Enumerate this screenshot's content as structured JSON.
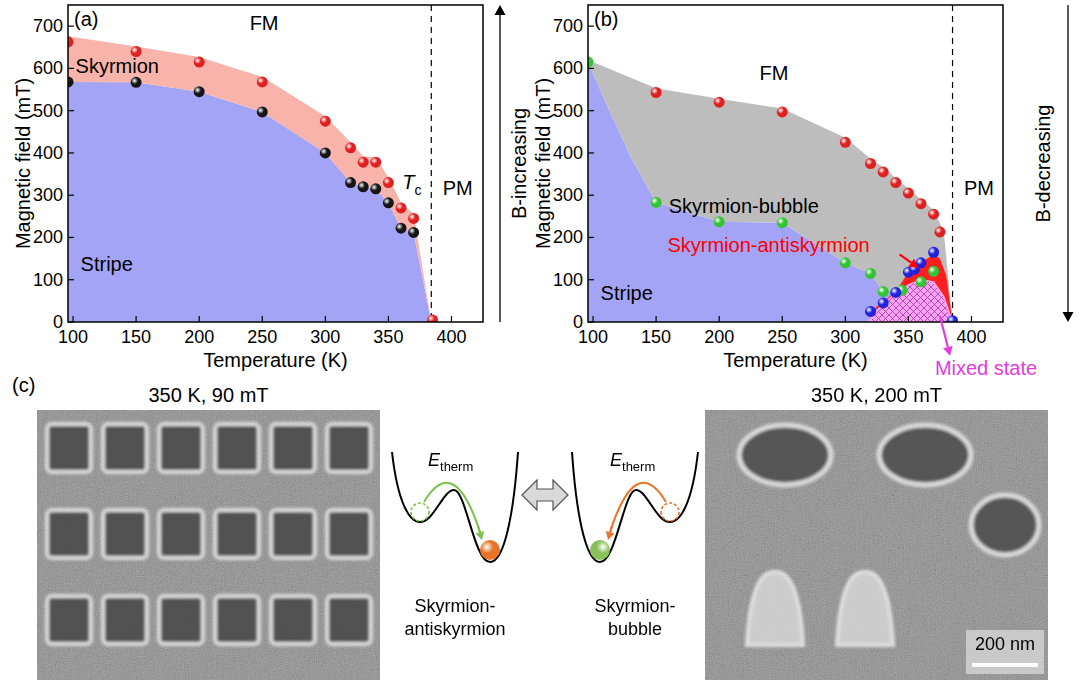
{
  "chart_data": [
    {
      "type": "scatter",
      "panel_label": "(a)",
      "x_label": "Temperature (K)",
      "y_label": "Magnetic field (mT)",
      "side_label": "B-increasing",
      "xlim": [
        96,
        425
      ],
      "ylim": [
        0,
        750
      ],
      "xticks": [
        100,
        150,
        200,
        250,
        300,
        350,
        400
      ],
      "yticks": [
        0,
        100,
        200,
        300,
        400,
        500,
        600,
        700
      ],
      "regions": [
        {
          "color": "#a4a4f6",
          "x": [
            96,
            96,
            150,
            200,
            250,
            300,
            320,
            330,
            340,
            350,
            360,
            370,
            384
          ],
          "y": [
            0,
            568,
            567,
            545,
            497,
            400,
            330,
            320,
            315,
            282,
            222,
            212,
            0
          ]
        },
        {
          "color": "#f8b4ab",
          "x": [
            96,
            150,
            200,
            250,
            300,
            320,
            330,
            340,
            350,
            360,
            370,
            384,
            370,
            360,
            350,
            340,
            330,
            320,
            300,
            250,
            200,
            150,
            96
          ],
          "y": [
            676,
            652,
            627,
            580,
            487,
            425,
            392,
            390,
            342,
            282,
            256,
            0,
            212,
            222,
            282,
            315,
            320,
            330,
            400,
            497,
            545,
            567,
            568
          ]
        }
      ],
      "vlines": [
        {
          "x": 384,
          "line_style": "dashed"
        }
      ],
      "series": [
        {
          "color": "#e02020",
          "marker": "circle",
          "x": [
            96,
            150,
            200,
            250,
            300,
            320,
            330,
            340,
            350,
            360,
            370,
            385
          ],
          "values": [
            663,
            640,
            615,
            568,
            475,
            412,
            378,
            378,
            330,
            270,
            245,
            5
          ]
        },
        {
          "color": "#151515",
          "marker": "circle",
          "x": [
            96,
            150,
            200,
            250,
            300,
            320,
            330,
            340,
            350,
            360,
            370
          ],
          "values": [
            568,
            567,
            545,
            497,
            400,
            330,
            320,
            315,
            282,
            222,
            212
          ]
        }
      ],
      "annotations": [
        {
          "text": "Skyrmion",
          "x": 102,
          "y": 588
        },
        {
          "text": "FM",
          "x": 240,
          "y": 690
        },
        {
          "text": "Stripe",
          "x": 106,
          "y": 120
        },
        {
          "text": "T",
          "sub": "c",
          "x": 361,
          "y": 315
        },
        {
          "text": "PM",
          "x": 393,
          "y": 300
        }
      ]
    },
    {
      "type": "scatter",
      "panel_label": "(b)",
      "x_label": "Temperature (K)",
      "y_label": "Magnetic field (mT)",
      "side_label": "B-decreasing",
      "xlim": [
        96,
        425
      ],
      "ylim": [
        0,
        750
      ],
      "xticks": [
        100,
        150,
        200,
        250,
        300,
        350,
        400
      ],
      "yticks": [
        0,
        100,
        200,
        300,
        400,
        500,
        600,
        700
      ],
      "regions": [
        {
          "color": "#a4a4f6",
          "x": [
            96,
            96,
            110,
            130,
            150,
            200,
            250,
            300,
            320,
            330,
            345,
            360,
            370,
            385
          ],
          "y": [
            0,
            615,
            520,
            390,
            283,
            237,
            235,
            140,
            115,
            72,
            75,
            95,
            120,
            0
          ]
        },
        {
          "color": "#bdbdbd",
          "x": [
            96,
            150,
            200,
            250,
            300,
            320,
            330,
            340,
            350,
            360,
            370,
            378,
            385,
            370,
            360,
            345,
            330,
            320,
            300,
            250,
            200,
            150,
            130,
            110,
            96
          ],
          "y": [
            620,
            553,
            528,
            505,
            436,
            386,
            366,
            340,
            316,
            290,
            265,
            215,
            0,
            120,
            95,
            75,
            72,
            115,
            140,
            235,
            237,
            283,
            390,
            520,
            615
          ]
        },
        {
          "color": "#ff1f1f",
          "x": [
            320,
            330,
            340,
            350,
            360,
            370,
            375,
            380,
            385,
            378,
            370,
            360,
            350,
            340,
            330,
            320
          ],
          "y": [
            25,
            48,
            72,
            118,
            140,
            160,
            150,
            110,
            0,
            60,
            95,
            100,
            88,
            68,
            42,
            20
          ]
        },
        {
          "color": "#f5a6f1",
          "line_style": "hatched",
          "x": [
            318,
            330,
            340,
            350,
            360,
            370,
            378,
            385
          ],
          "y": [
            0,
            42,
            68,
            88,
            100,
            95,
            60,
            0
          ]
        }
      ],
      "vlines": [
        {
          "x": 385,
          "line_style": "dashed"
        }
      ],
      "series": [
        {
          "color": "#e02020",
          "marker": "circle",
          "x": [
            150,
            200,
            250,
            300,
            320,
            330,
            340,
            350,
            360,
            370,
            375
          ],
          "values": [
            543,
            520,
            497,
            425,
            375,
            355,
            330,
            305,
            280,
            255,
            213
          ]
        },
        {
          "color": "#33c433",
          "marker": "circle",
          "x": [
            96,
            150,
            200,
            250,
            300,
            320,
            330,
            345,
            360,
            370
          ],
          "values": [
            615,
            283,
            237,
            235,
            140,
            115,
            72,
            75,
            95,
            120
          ]
        },
        {
          "color": "#2222dd",
          "marker": "circle",
          "x": [
            320,
            330,
            340,
            350,
            355,
            360,
            370,
            385
          ],
          "values": [
            25,
            45,
            70,
            118,
            125,
            140,
            165,
            3
          ]
        }
      ],
      "annotations": [
        {
          "text": "FM",
          "x": 232,
          "y": 572
        },
        {
          "text": "Skyrmion-bubble",
          "x": 160,
          "y": 258
        },
        {
          "text": "Skyrmion-antiskyrmion",
          "x": 159,
          "y": 165,
          "color": "#ff0000",
          "arrow_from": [
            343,
            160
          ],
          "arrow_to": [
            358,
            128
          ]
        },
        {
          "text": "Stripe",
          "x": 106,
          "y": 52
        },
        {
          "text": "PM",
          "x": 394,
          "y": 300
        },
        {
          "text": "Mixed state",
          "x": 371,
          "y": -125,
          "color": "#e03ce0",
          "arrow_from": [
            375,
            15
          ],
          "arrow_to": [
            383,
            -80
          ]
        }
      ]
    }
  ],
  "panel_c": {
    "label": "(c)",
    "images": [
      {
        "title": "350 K, 90 mT"
      },
      {
        "title": "350 K, 200 mT",
        "scale_bar": "200 nm"
      }
    ],
    "energy": {
      "text": "E",
      "sub": "therm"
    },
    "states": [
      "Skyrmion-antiskyrmion",
      "Skyrmion-bubble"
    ]
  }
}
